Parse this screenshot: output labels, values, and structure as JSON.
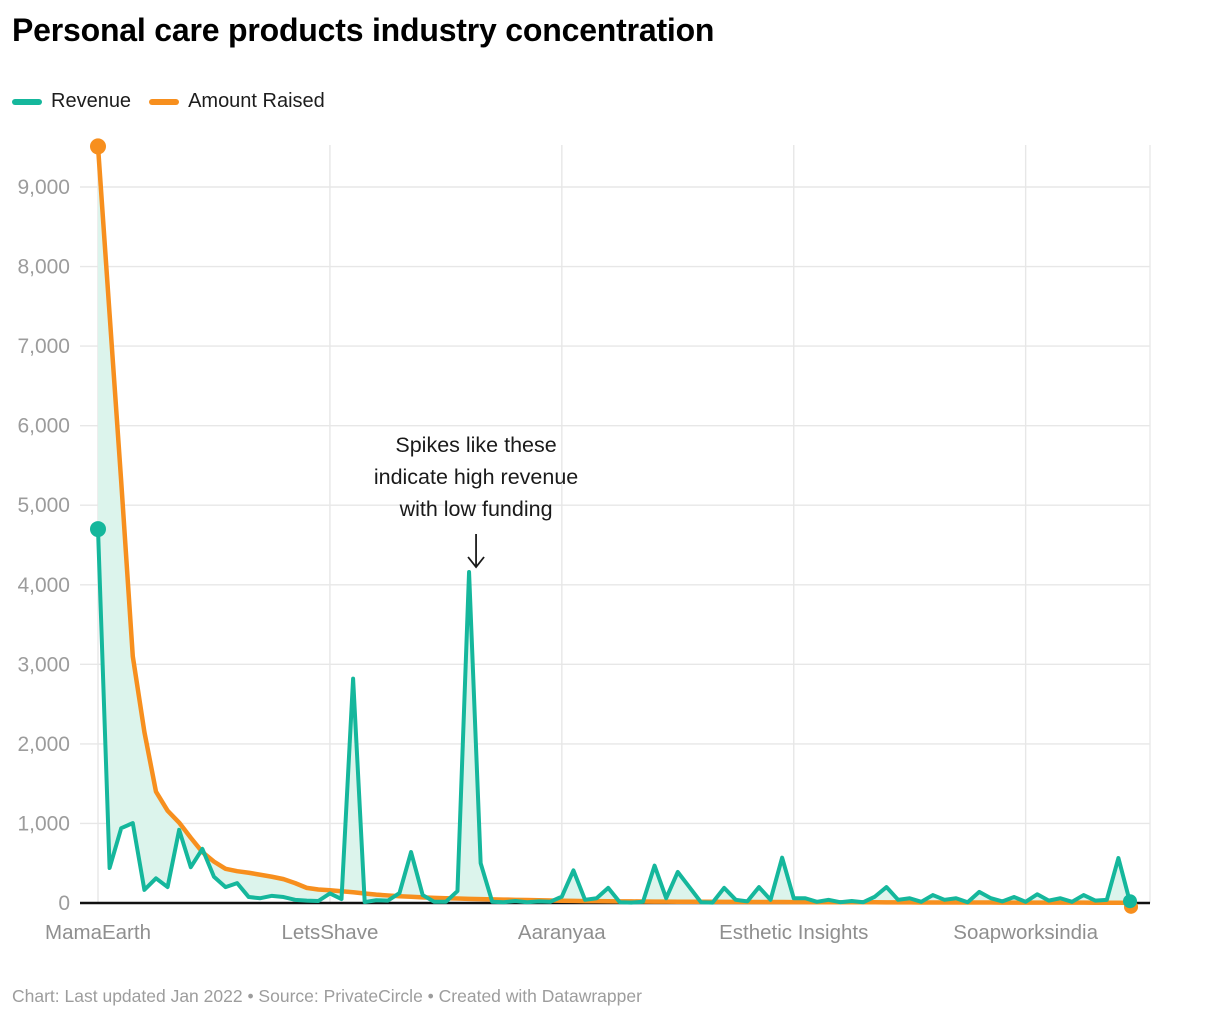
{
  "title": "Personal care products industry concentration",
  "legend": [
    {
      "label": "Revenue",
      "color": "#15b79c"
    },
    {
      "label": "Amount Raised",
      "color": "#f78f1e"
    }
  ],
  "footer": {
    "text": "Chart: Last updated Jan 2022 • Source: PrivateCircle • Created with Datawrapper"
  },
  "chart_data": {
    "type": "line",
    "title": "Personal care products industry concentration",
    "xlabel": "",
    "ylabel": "",
    "ylim": [
      0,
      9600
    ],
    "y_ticks": [
      0,
      1000,
      2000,
      3000,
      4000,
      5000,
      6000,
      7000,
      8000,
      9000
    ],
    "grid": true,
    "legend_position": "top-left",
    "band_fill_color": "#dcf4ec",
    "x_points": 90,
    "x_tick_labels": [
      {
        "label": "MamaEarth",
        "index": 0
      },
      {
        "label": "LetsShave",
        "index": 20
      },
      {
        "label": "Aaranyaa",
        "index": 40
      },
      {
        "label": "Esthetic Insights",
        "index": 60
      },
      {
        "label": "Soapworksindia",
        "index": 80
      }
    ],
    "series": [
      {
        "name": "Revenue",
        "color": "#15b79c",
        "endpoint_dots": true,
        "values": [
          4700,
          440,
          940,
          1005,
          165,
          310,
          200,
          920,
          450,
          680,
          330,
          200,
          250,
          75,
          60,
          90,
          75,
          40,
          30,
          25,
          120,
          50,
          2820,
          12,
          35,
          30,
          125,
          640,
          100,
          15,
          15,
          150,
          4160,
          500,
          15,
          10,
          25,
          10,
          20,
          15,
          80,
          410,
          40,
          60,
          190,
          10,
          5,
          15,
          470,
          60,
          390,
          200,
          10,
          5,
          190,
          40,
          20,
          200,
          40,
          570,
          60,
          60,
          15,
          40,
          10,
          25,
          10,
          80,
          200,
          40,
          60,
          15,
          100,
          40,
          60,
          10,
          140,
          60,
          20,
          75,
          15,
          110,
          30,
          60,
          15,
          100,
          30,
          40,
          565,
          10
        ]
      },
      {
        "name": "Amount Raised",
        "color": "#f78f1e",
        "endpoint_dots": true,
        "values": [
          9510,
          7400,
          5300,
          3100,
          2150,
          1400,
          1160,
          1010,
          820,
          640,
          520,
          430,
          400,
          380,
          355,
          330,
          300,
          250,
          190,
          170,
          160,
          148,
          135,
          120,
          105,
          95,
          85,
          78,
          70,
          65,
          60,
          56,
          52,
          48,
          45,
          43,
          40,
          37,
          34,
          31,
          28,
          26,
          24,
          23,
          22,
          21,
          20,
          19,
          18,
          17,
          16,
          16,
          15,
          15,
          14,
          14,
          13,
          13,
          12,
          12,
          11,
          11,
          10,
          10,
          10,
          9,
          9,
          9,
          8,
          8,
          8,
          7,
          7,
          7,
          6,
          6,
          6,
          6,
          5,
          5,
          5,
          5,
          4,
          4,
          4,
          4,
          3,
          3,
          3,
          2
        ]
      }
    ],
    "annotation": {
      "text_lines": [
        "Spikes like these",
        "indicate high revenue",
        "with low funding"
      ],
      "arrow_target_index": 32
    }
  }
}
